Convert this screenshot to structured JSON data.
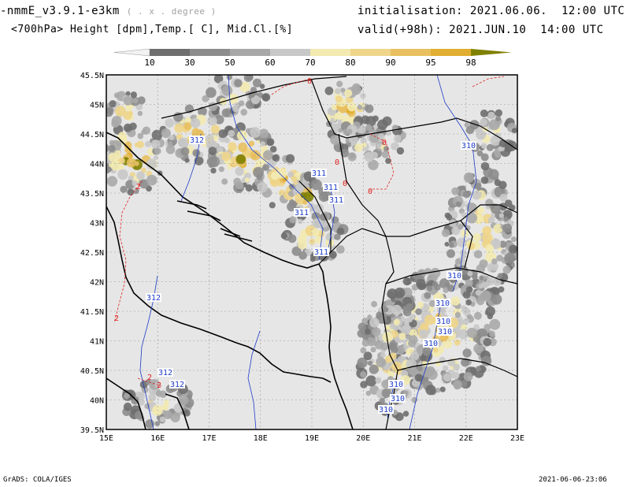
{
  "header": {
    "model": "-nmmE_v3.9.1-e3km",
    "model_note": "( . x . degree )",
    "subtitle": "<700hPa> Height [dpm],Temp.[ C], Mid.Cl.[%]",
    "init_label": "initialisation:",
    "init_value": "2021.06.06.  12:00 UTC",
    "valid_label": "valid(+98h):",
    "valid_value": "2021.JUN.10  14:00 UTC"
  },
  "legend": {
    "ticks": [
      "10",
      "30",
      "50",
      "60",
      "70",
      "80",
      "90",
      "95",
      "98"
    ],
    "colors": [
      "#f2f2f2",
      "#6e6e6e",
      "#8c8c8c",
      "#a8a8a8",
      "#c8c8c8",
      "#f2eab0",
      "#eed58a",
      "#e8c060",
      "#e0ae30",
      "#808000"
    ]
  },
  "map": {
    "lon_labels": [
      "15E",
      "16E",
      "17E",
      "18E",
      "19E",
      "20E",
      "21E",
      "22E",
      "23E"
    ],
    "lat_labels": [
      "45.5N",
      "45N",
      "44.5N",
      "44N",
      "43.5N",
      "43N",
      "42.5N",
      "42N",
      "41.5N",
      "41N",
      "40.5N",
      "40N",
      "39.5N"
    ],
    "height_labels": [
      "312",
      "312",
      "312",
      "312",
      "311",
      "311",
      "311",
      "311",
      "311",
      "310",
      "310",
      "310",
      "310",
      "310",
      "310",
      "310",
      "310",
      "310"
    ],
    "temp_labels": [
      "0",
      "0",
      "0",
      "0",
      "0",
      "2",
      "2",
      "2",
      "2"
    ],
    "colors": {
      "land": "#e6e6e6",
      "sea": "#e6e6e6",
      "coast": "#000000",
      "height": "#1e3cc8",
      "temp": "#e02020",
      "grid": "#9a9a9a"
    }
  },
  "footer": {
    "left": "GrADS: COLA/IGES",
    "right": "2021-06-06-23:06"
  }
}
